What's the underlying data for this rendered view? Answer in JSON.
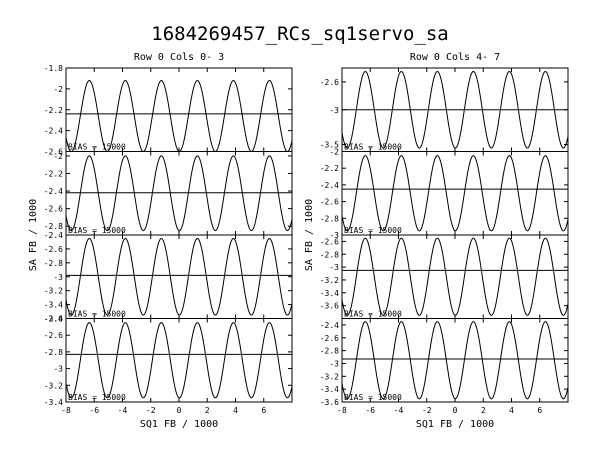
{
  "title": "1684269457_RCs_sq1servo_sa",
  "chart_data": [
    {
      "type": "line",
      "title": "Row  0  Cols  0- 3",
      "xlabel": "SQ1 FB / 1000",
      "ylabel": "SA FB / 1000",
      "xlim": [
        -8,
        8
      ],
      "xticks": [
        "-8",
        "-6",
        "-4",
        "-2",
        "0",
        "2",
        "4",
        "6"
      ],
      "grid": false,
      "panels": [
        {
          "ylim": [
            -2.6,
            -1.8
          ],
          "yticks": [
            "-1.8",
            "-2",
            "-2.2",
            "-2.4",
            "-2.6"
          ],
          "hline": -2.24,
          "label": "BIAS = 15000",
          "series": [
            {
              "peak": -1.92,
              "trough": -2.6,
              "period": 2.55,
              "phase": -6.35
            }
          ]
        },
        {
          "ylim": [
            -2.9,
            -1.95
          ],
          "yticks": [
            "-2",
            "-2.2",
            "-2.4",
            "-2.6",
            "-2.8"
          ],
          "hline": -2.42,
          "label": "BIAS = 15000",
          "series": [
            {
              "peak": -2.0,
              "trough": -2.85,
              "period": 2.55,
              "phase": -6.35
            }
          ]
        },
        {
          "ylim": [
            -3.6,
            -2.4
          ],
          "yticks": [
            "-2.4",
            "-2.6",
            "-2.8",
            "-3",
            "-3.2",
            "-3.4",
            "-3.6"
          ],
          "hline": -2.98,
          "label": "BIAS = 15000",
          "series": [
            {
              "peak": -2.45,
              "trough": -3.55,
              "period": 2.55,
              "phase": -6.35
            }
          ]
        },
        {
          "ylim": [
            -3.4,
            -2.4
          ],
          "yticks": [
            "-2.4",
            "-2.6",
            "-2.8",
            "-3",
            "-3.2",
            "-3.4"
          ],
          "hline": -2.83,
          "label": "BIAS = 15000",
          "series": [
            {
              "peak": -2.45,
              "trough": -3.35,
              "period": 2.55,
              "phase": -6.35
            }
          ]
        }
      ]
    },
    {
      "type": "line",
      "title": "Row  0  Cols  4- 7",
      "xlabel": "SQ1 FB / 1000",
      "ylabel": "SA FB / 1000",
      "xlim": [
        -8,
        8
      ],
      "xticks": [
        "-8",
        "-6",
        "-4",
        "-2",
        "0",
        "2",
        "4",
        "6"
      ],
      "grid": false,
      "panels": [
        {
          "ylim": [
            -3.6,
            -2.4
          ],
          "yticks": [
            "-2.6",
            "-3",
            "-3.5"
          ],
          "hline": -3.0,
          "label": "BIAS = 15000",
          "series": [
            {
              "peak": -2.45,
              "trough": -3.55,
              "period": 2.55,
              "phase": -6.35
            }
          ]
        },
        {
          "ylim": [
            -3.0,
            -2.0
          ],
          "yticks": [
            "-2",
            "-2.2",
            "-2.4",
            "-2.6",
            "-2.8",
            "-3"
          ],
          "hline": -2.45,
          "label": "BIAS = 15000",
          "series": [
            {
              "peak": -2.05,
              "trough": -2.95,
              "period": 2.55,
              "phase": -6.35
            }
          ]
        },
        {
          "ylim": [
            -3.8,
            -2.5
          ],
          "yticks": [
            "-2.6",
            "-2.8",
            "-3",
            "-3.2",
            "-3.4",
            "-3.6"
          ],
          "hline": -3.05,
          "label": "BIAS = 15000",
          "series": [
            {
              "peak": -2.55,
              "trough": -3.75,
              "period": 2.55,
              "phase": -6.35
            }
          ]
        },
        {
          "ylim": [
            -3.6,
            -2.3
          ],
          "yticks": [
            "-2.4",
            "-2.6",
            "-2.8",
            "-3",
            "-3.2",
            "-3.4",
            "-3.6"
          ],
          "hline": -2.93,
          "label": "BIAS = 15000",
          "series": [
            {
              "peak": -2.35,
              "trough": -3.55,
              "period": 2.55,
              "phase": -6.35
            }
          ]
        }
      ]
    }
  ]
}
